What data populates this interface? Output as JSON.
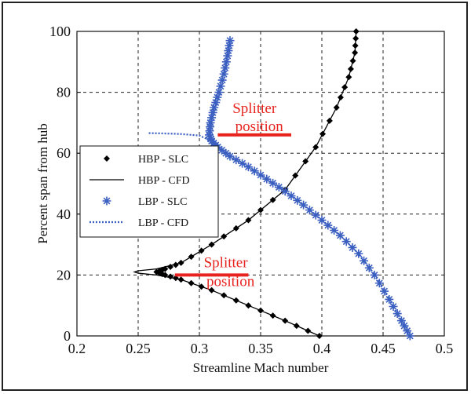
{
  "chart_data": {
    "type": "line",
    "xlabel": "Streamline Mach number",
    "ylabel": "Percent span from hub",
    "xlim": [
      0.2,
      0.5
    ],
    "ylim": [
      0,
      100
    ],
    "xticks": [
      0.2,
      0.25,
      0.3,
      0.35,
      0.4,
      0.45,
      0.5
    ],
    "yticks": [
      0,
      20,
      40,
      60,
      80,
      100
    ],
    "xtick_labels": [
      "0.2",
      "0.25",
      "0.3",
      "0.35",
      "0.4",
      "0.45",
      "0.5"
    ],
    "ytick_labels": [
      "0",
      "20",
      "40",
      "60",
      "80",
      "100"
    ],
    "grid": true,
    "legend_position": "left",
    "series": [
      {
        "name": "HBP - SLC",
        "marker": "diamond",
        "color": "#000000",
        "x": [
          0.398,
          0.37,
          0.34,
          0.31,
          0.285,
          0.272,
          0.265,
          0.272,
          0.285,
          0.31,
          0.34,
          0.37,
          0.395,
          0.412,
          0.422,
          0.427,
          0.428
        ],
        "y": [
          0,
          5,
          10,
          15,
          18.5,
          20,
          21,
          22,
          24,
          30,
          38,
          48,
          62,
          75,
          85,
          93,
          100
        ]
      },
      {
        "name": "HBP - CFD",
        "marker": "none",
        "line": "solid",
        "color": "#000000",
        "x": [
          0.398,
          0.37,
          0.34,
          0.31,
          0.285,
          0.265,
          0.25,
          0.247,
          0.25,
          0.265,
          0.285,
          0.31,
          0.34,
          0.37,
          0.395,
          0.412,
          0.422,
          0.427,
          0.428
        ],
        "y": [
          0,
          5,
          10,
          15,
          18.5,
          20,
          20.6,
          21,
          21.4,
          22,
          24,
          30,
          38,
          48,
          62,
          75,
          85,
          93,
          100
        ]
      },
      {
        "name": "LBP - SLC",
        "marker": "star",
        "color": "#3a5fc0",
        "x": [
          0.472,
          0.465,
          0.455,
          0.443,
          0.43,
          0.415,
          0.4,
          0.385,
          0.37,
          0.355,
          0.34,
          0.325,
          0.315,
          0.31,
          0.308,
          0.309,
          0.312,
          0.316,
          0.32,
          0.323,
          0.325
        ],
        "y": [
          0,
          5,
          12,
          20,
          27,
          33,
          38,
          43,
          47.5,
          51.5,
          55.5,
          59,
          62,
          64,
          66,
          70,
          75,
          80,
          86,
          92,
          97
        ]
      },
      {
        "name": "LBP - CFD",
        "marker": "none",
        "line": "dotted",
        "color": "#3a5fc0",
        "x": [
          0.472,
          0.465,
          0.455,
          0.443,
          0.43,
          0.415,
          0.4,
          0.385,
          0.37,
          0.355,
          0.34,
          0.325,
          0.315,
          0.31,
          0.3,
          0.285,
          0.27,
          0.258
        ],
        "y": [
          0,
          5,
          12,
          20,
          27,
          33,
          38,
          43,
          47.5,
          51.5,
          55.5,
          59,
          62,
          64,
          65.8,
          66.3,
          66.5,
          66.6
        ]
      }
    ],
    "annotations": [
      {
        "text_line1": "Splitter",
        "text_line2": "position",
        "pointer_y": 66,
        "pointer_x": [
          0.315,
          0.375
        ],
        "color": "#e8231e"
      },
      {
        "text_line1": "Splitter",
        "text_line2": "position",
        "pointer_y": 20,
        "pointer_x": [
          0.28,
          0.34
        ],
        "color": "#e8231e"
      }
    ]
  }
}
